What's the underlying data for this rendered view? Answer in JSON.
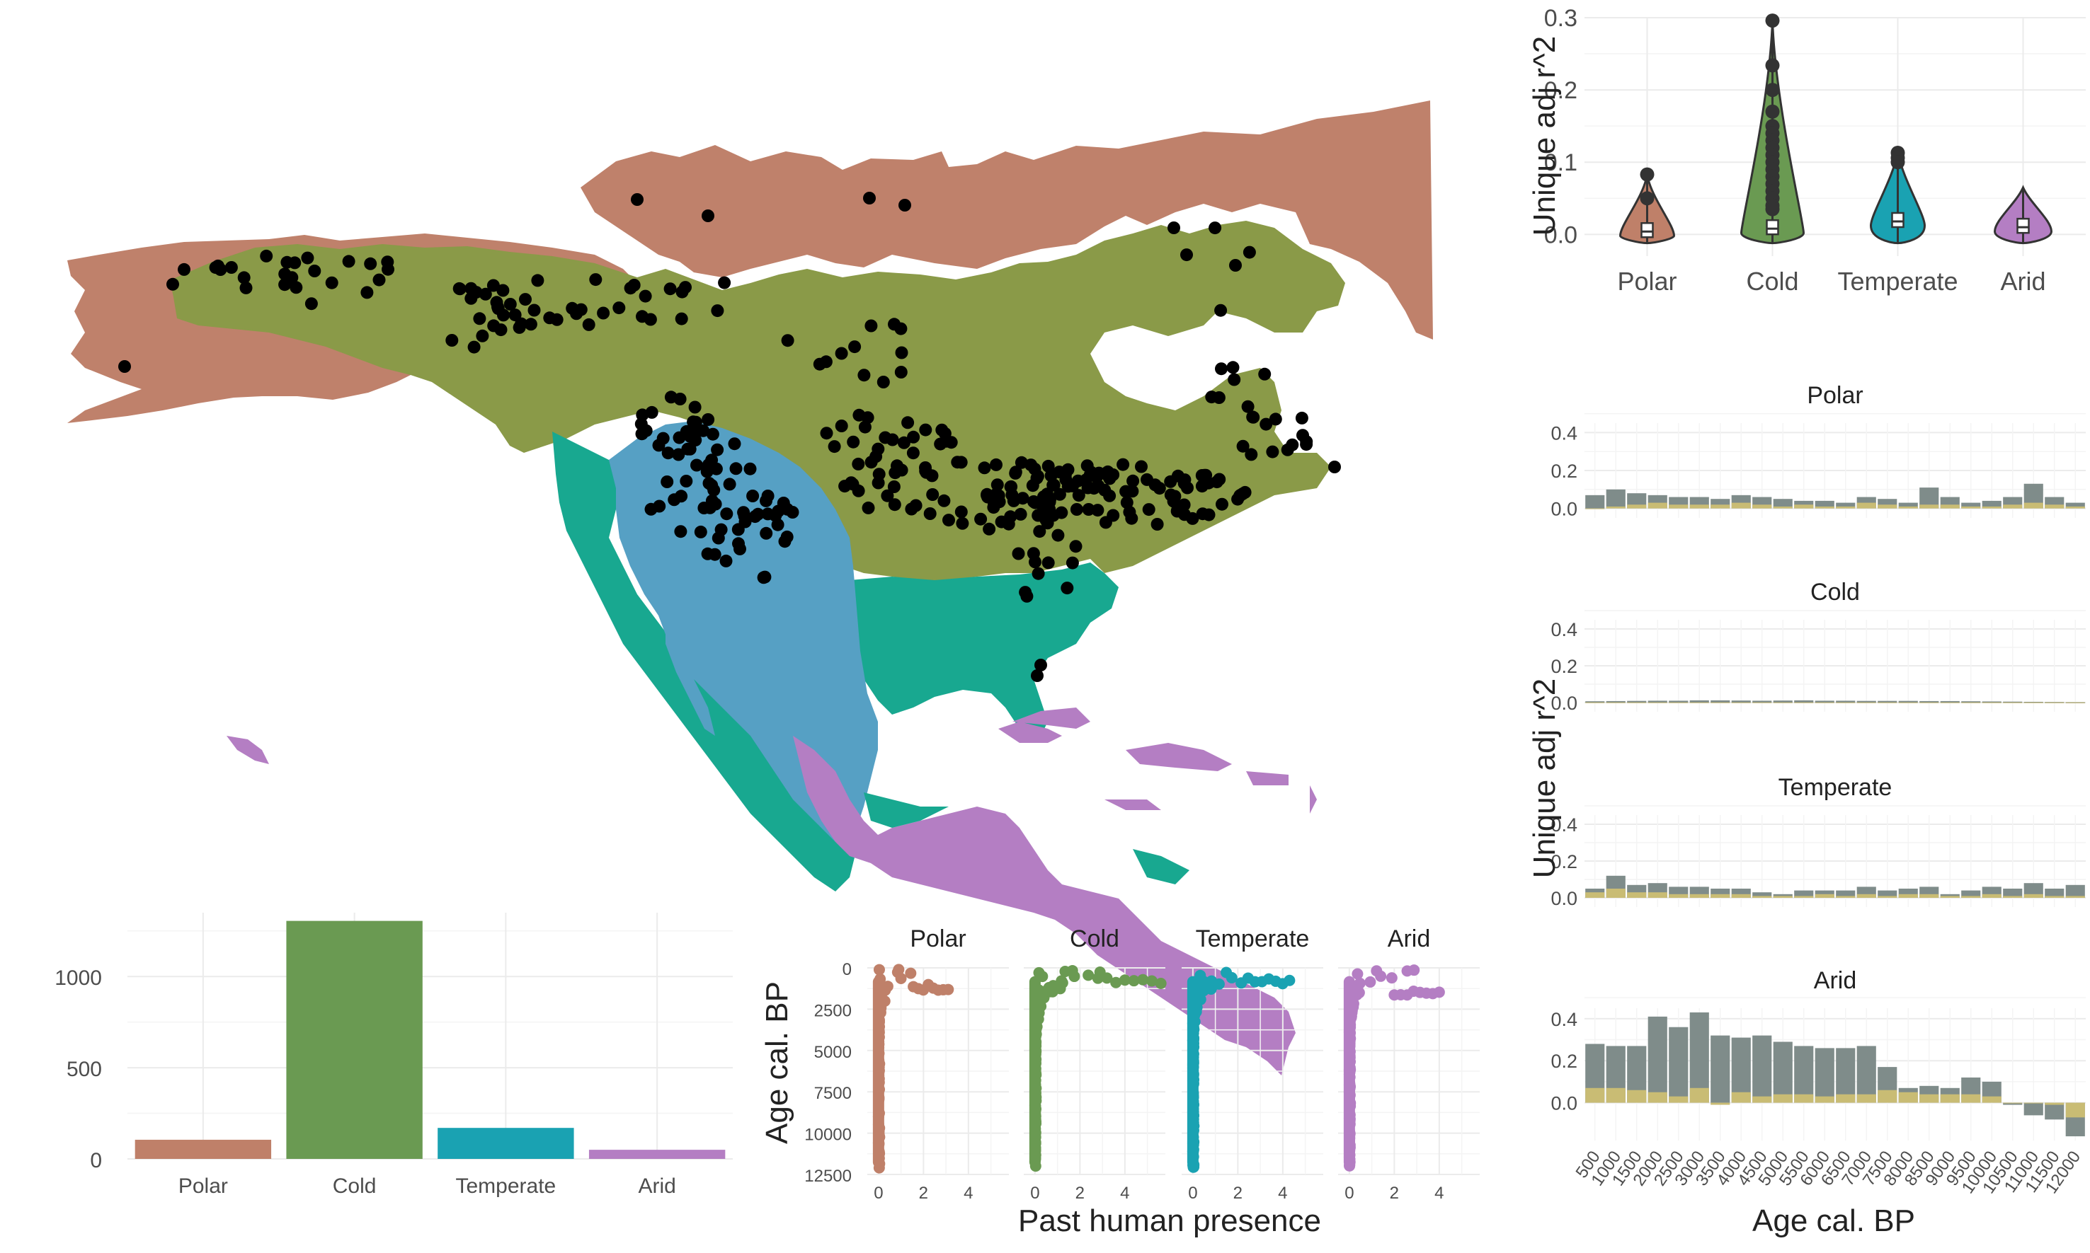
{
  "colors": {
    "polar": "#bf8069",
    "cold": "#6a9a52",
    "temperate": "#1aa2b2",
    "arid": "#b47ec3",
    "map_polar": "#bf816b",
    "map_cold": "#8a9a48",
    "map_temperate": "#18a890",
    "map_arid": "#56a0c4",
    "map_tropical": "#b47ec3",
    "bar_total": "#7f8c8a",
    "bar_unique": "#c9bc74",
    "points": "#000000"
  },
  "map": {
    "points_note": "black site points over North America biome map"
  },
  "chart_data": [
    {
      "id": "violin",
      "type": "violin",
      "categories": [
        "Polar",
        "Cold",
        "Temperate",
        "Arid"
      ],
      "ylabel": "Unique adj r^2",
      "xlabel": "",
      "ylim": [
        -0.03,
        0.3
      ],
      "yticks": [
        "0.0",
        "0.1",
        "0.2",
        "0.3"
      ],
      "ytick_values": [
        0.0,
        0.1,
        0.2,
        0.3
      ],
      "medians": [
        0.004,
        0.008,
        0.018,
        0.01
      ],
      "max": [
        0.083,
        0.296,
        0.113,
        0.065
      ],
      "outliers": [
        [
          0.083,
          0.05
        ],
        [
          0.296,
          0.234,
          0.2,
          0.17,
          0.15,
          0.14,
          0.13,
          0.12,
          0.11,
          0.1,
          0.09,
          0.08,
          0.07,
          0.06,
          0.05,
          0.04,
          0.035
        ],
        [
          0.113,
          0.106,
          0.1
        ],
        []
      ]
    },
    {
      "id": "counts",
      "type": "bar",
      "categories": [
        "Polar",
        "Cold",
        "Temperate",
        "Arid"
      ],
      "values": [
        105,
        1305,
        170,
        50
      ],
      "ylim": [
        0,
        1350
      ],
      "yticks": [
        "0",
        "500",
        "1000"
      ],
      "ytick_values": [
        0,
        500,
        1000
      ]
    },
    {
      "id": "scatter",
      "type": "scatter",
      "panels": [
        "Polar",
        "Cold",
        "Temperate",
        "Arid"
      ],
      "xlabel": "Past human presence",
      "ylabel": "Age cal. BP",
      "yticks": [
        "0",
        "2500",
        "5000",
        "7500",
        "10000",
        "12500"
      ],
      "ytick_values": [
        0,
        2500,
        5000,
        7500,
        10000,
        12500
      ],
      "xticks": [
        "0",
        "2",
        "4"
      ],
      "xtick_values": [
        0,
        2,
        4
      ],
      "xlim": [
        -0.5,
        5.8
      ],
      "ylim": [
        12500,
        0
      ],
      "max_x": [
        3.1,
        5.6,
        4.3,
        4.0
      ]
    },
    {
      "id": "age_bars",
      "type": "bar",
      "panels": [
        "Polar",
        "Cold",
        "Temperate",
        "Arid"
      ],
      "xlabel": "Age cal. BP",
      "ylabel": "Unique adj r^2",
      "yticks": [
        "0.0",
        "0.2",
        "0.4"
      ],
      "ytick_values": [
        0.0,
        0.2,
        0.4
      ],
      "categories": [
        "500",
        "1000",
        "1500",
        "2000",
        "2500",
        "3000",
        "3500",
        "4000",
        "4500",
        "5000",
        "5500",
        "6000",
        "6500",
        "7000",
        "7500",
        "8000",
        "8500",
        "9000",
        "9500",
        "10000",
        "10500",
        "11000",
        "11500",
        "12000"
      ],
      "series": [
        {
          "name": "Polar",
          "total": [
            0.07,
            0.1,
            0.08,
            0.07,
            0.06,
            0.06,
            0.05,
            0.07,
            0.06,
            0.05,
            0.04,
            0.04,
            0.03,
            0.06,
            0.05,
            0.03,
            0.11,
            0.06,
            0.03,
            0.04,
            0.06,
            0.13,
            0.06,
            0.03
          ],
          "unique": [
            0.0,
            0.01,
            0.02,
            0.03,
            0.02,
            0.02,
            0.02,
            0.03,
            0.02,
            0.01,
            0.02,
            0.01,
            0.01,
            0.03,
            0.02,
            0.01,
            0.02,
            0.02,
            0.01,
            0.01,
            0.02,
            0.03,
            0.02,
            0.01
          ]
        },
        {
          "name": "Cold",
          "total": [
            0.007,
            0.008,
            0.009,
            0.01,
            0.01,
            0.012,
            0.012,
            0.011,
            0.01,
            0.011,
            0.012,
            0.01,
            0.01,
            0.009,
            0.009,
            0.009,
            0.008,
            0.008,
            0.007,
            0.006,
            0.005,
            0.004,
            0.003,
            0.002
          ],
          "unique": [
            0.001,
            0.001,
            0.001,
            0.001,
            0.001,
            0.001,
            0.001,
            0.001,
            0.001,
            0.001,
            0.001,
            0.001,
            0.001,
            0.001,
            0.001,
            0.001,
            0.001,
            0.001,
            0.001,
            0.001,
            0.001,
            0.001,
            0.001,
            0.001
          ]
        },
        {
          "name": "Temperate",
          "total": [
            0.05,
            0.12,
            0.07,
            0.08,
            0.06,
            0.06,
            0.05,
            0.05,
            0.03,
            0.02,
            0.04,
            0.04,
            0.04,
            0.06,
            0.04,
            0.05,
            0.06,
            0.02,
            0.04,
            0.06,
            0.05,
            0.08,
            0.05,
            0.07
          ],
          "unique": [
            0.03,
            0.05,
            0.03,
            0.03,
            0.02,
            0.02,
            0.02,
            0.02,
            0.01,
            0.01,
            0.01,
            0.02,
            0.01,
            0.02,
            0.01,
            0.02,
            0.02,
            0.01,
            0.01,
            0.02,
            0.01,
            0.02,
            0.01,
            0.01
          ]
        },
        {
          "name": "Arid",
          "total": [
            0.28,
            0.27,
            0.27,
            0.41,
            0.36,
            0.43,
            0.32,
            0.31,
            0.32,
            0.29,
            0.27,
            0.26,
            0.26,
            0.27,
            0.17,
            0.07,
            0.08,
            0.07,
            0.12,
            0.1,
            -0.01,
            -0.06,
            -0.08,
            -0.16
          ],
          "unique": [
            0.07,
            0.07,
            0.06,
            0.05,
            0.03,
            0.07,
            -0.01,
            0.05,
            0.03,
            0.04,
            0.04,
            0.03,
            0.04,
            0.04,
            0.06,
            0.05,
            0.04,
            0.04,
            0.04,
            0.03,
            0.0,
            0.0,
            -0.01,
            -0.07
          ]
        }
      ]
    }
  ]
}
